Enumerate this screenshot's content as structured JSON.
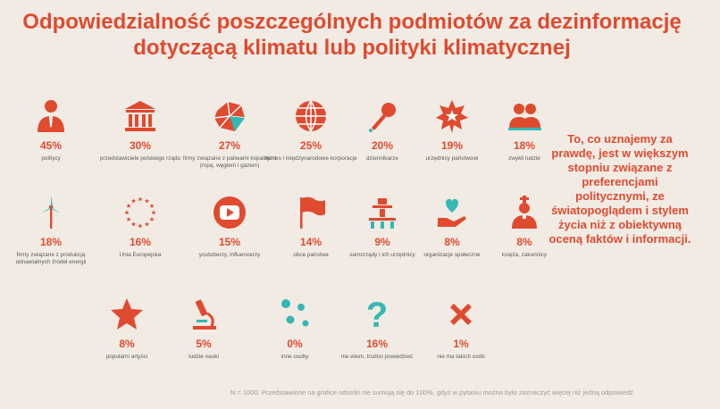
{
  "title": "Odpowiedzialność poszczególnych podmiotów za dezinformację dotyczącą klimatu lub polityki klimatycznej",
  "side_text": "To, co uznajemy za prawdę, jest w większym stopniu związane z preferencjami politycznymi, ze światopoglądem i stylem życia niż z obiektywną oceną faktów i informacji.",
  "footnote": "N = 1000. Przedstawione na grafice odsetki nie sumują się do 100%, gdyż w pytaniu można było zaznaczyć więcej niż jedną odpowiedź",
  "colors": {
    "accent": "#e04a2f",
    "teal": "#35b8b3",
    "text": "#5a5a5a"
  },
  "chart_data": {
    "type": "pictogram",
    "title": "Odpowiedzialność poszczególnych podmiotów za dezinformację dotyczącą klimatu lub polityki klimatycznej",
    "unit": "%",
    "items": [
      {
        "label": "politycy",
        "value": 45,
        "display": "45%",
        "icon": "person-icon"
      },
      {
        "label": "przedstawiciele polskiego rządu",
        "value": 30,
        "display": "30%",
        "icon": "government-building-icon"
      },
      {
        "label": "firmy związane z paliwami kopalnymi (ropą, węglem i gazem)",
        "value": 27,
        "display": "27%",
        "icon": "coal-icon"
      },
      {
        "label": "biznes i międzynarodowe korporacje",
        "value": 25,
        "display": "25%",
        "icon": "globe-icon"
      },
      {
        "label": "dziennikarze",
        "value": 20,
        "display": "20%",
        "icon": "microphone-icon"
      },
      {
        "label": "urzędnicy państwowi",
        "value": 19,
        "display": "19%",
        "icon": "badge-star-icon"
      },
      {
        "label": "zwykli ludzie",
        "value": 18,
        "display": "18%",
        "icon": "people-icon"
      },
      {
        "label": "firmy związane z produkcją odnawialnych źródeł energii",
        "value": 18,
        "display": "18%",
        "icon": "wind-turbine-icon"
      },
      {
        "label": "Unia Europejska",
        "value": 16,
        "display": "16%",
        "icon": "eu-stars-icon"
      },
      {
        "label": "youtuberzy, influencerzy",
        "value": 15,
        "display": "15%",
        "icon": "youtube-icon"
      },
      {
        "label": "obce państwa",
        "value": 14,
        "display": "14%",
        "icon": "flag-icon"
      },
      {
        "label": "samorządy i ich urzędnicy",
        "value": 9,
        "display": "9%",
        "icon": "local-government-icon"
      },
      {
        "label": "organizacje społeczne",
        "value": 8,
        "display": "8%",
        "icon": "heart-hand-icon"
      },
      {
        "label": "księża, zakonnicy",
        "value": 8,
        "display": "8%",
        "icon": "priest-icon"
      },
      {
        "label": "popularni artyści",
        "value": 8,
        "display": "8%",
        "icon": "star-icon"
      },
      {
        "label": "ludzie nauki",
        "value": 5,
        "display": "5%",
        "icon": "microscope-icon"
      },
      {
        "label": "inne osoby",
        "value": 0,
        "display": "0%",
        "icon": "dots-icon"
      },
      {
        "label": "nie wiem, trudno powiedzieć",
        "value": 16,
        "display": "16%",
        "icon": "question-mark-icon"
      },
      {
        "label": "nie ma takich osób",
        "value": 1,
        "display": "1%",
        "icon": "cross-icon"
      }
    ]
  }
}
